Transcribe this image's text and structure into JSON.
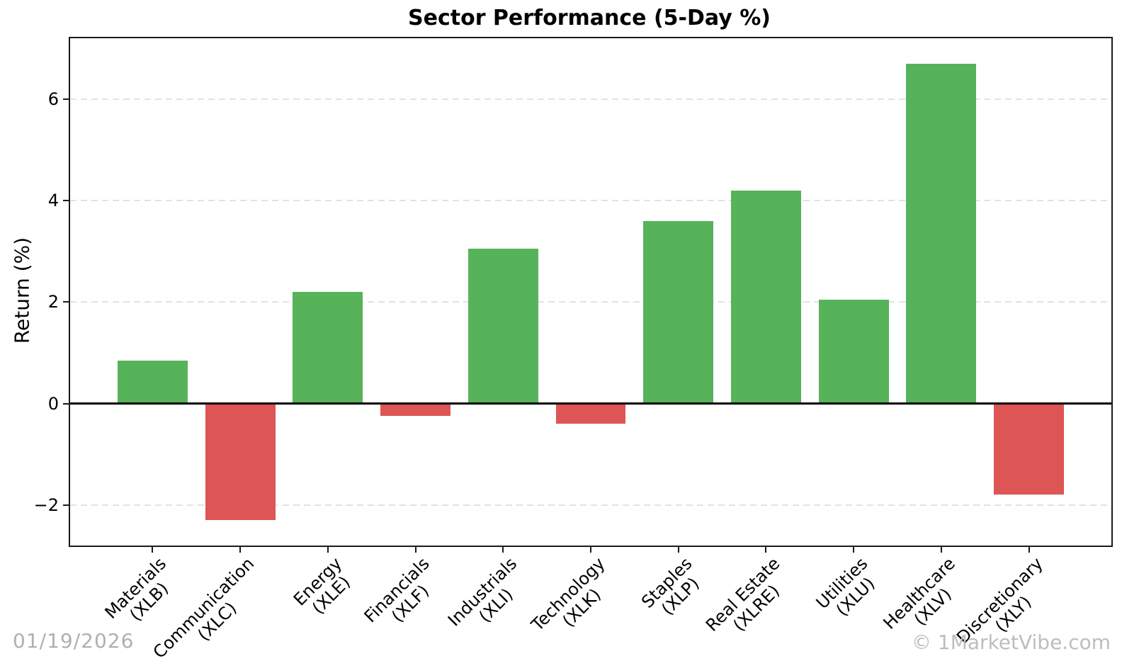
{
  "chart_data": {
    "type": "bar",
    "title": "Sector Performance (5-Day %)",
    "xlabel": "",
    "ylabel": "Return (%)",
    "categories": [
      {
        "sector": "Materials",
        "ticker": "(XLB)"
      },
      {
        "sector": "Communication",
        "ticker": "(XLC)"
      },
      {
        "sector": "Energy",
        "ticker": "(XLE)"
      },
      {
        "sector": "Financials",
        "ticker": "(XLF)"
      },
      {
        "sector": "Industrials",
        "ticker": "(XLI)"
      },
      {
        "sector": "Technology",
        "ticker": "(XLK)"
      },
      {
        "sector": "Staples",
        "ticker": "(XLP)"
      },
      {
        "sector": "Real Estate",
        "ticker": "(XLRE)"
      },
      {
        "sector": "Utilities",
        "ticker": "(XLU)"
      },
      {
        "sector": "Healthcare",
        "ticker": "(XLV)"
      },
      {
        "sector": "Discretionary",
        "ticker": "(XLY)"
      }
    ],
    "values": [
      0.85,
      -2.3,
      2.2,
      -0.25,
      3.05,
      -0.4,
      3.6,
      4.2,
      2.05,
      6.7,
      -1.8
    ],
    "yticks": [
      -2,
      0,
      2,
      4,
      6
    ],
    "ylim": [
      -2.8,
      7.2
    ],
    "xlim": [
      -0.94,
      10.94
    ],
    "bar_width_fraction": 0.8,
    "grid": {
      "axis": "y",
      "style": "dashed",
      "on": true
    },
    "legend": null,
    "colors": {
      "positive": "#56b35a",
      "negative": "#dd5555",
      "zero_line": "#000000",
      "gridline": "#e2e2e2",
      "spine": "#1a1a1a"
    }
  },
  "footer": {
    "date": "01/19/2026",
    "watermark": "© 1MarketVibe.com"
  }
}
